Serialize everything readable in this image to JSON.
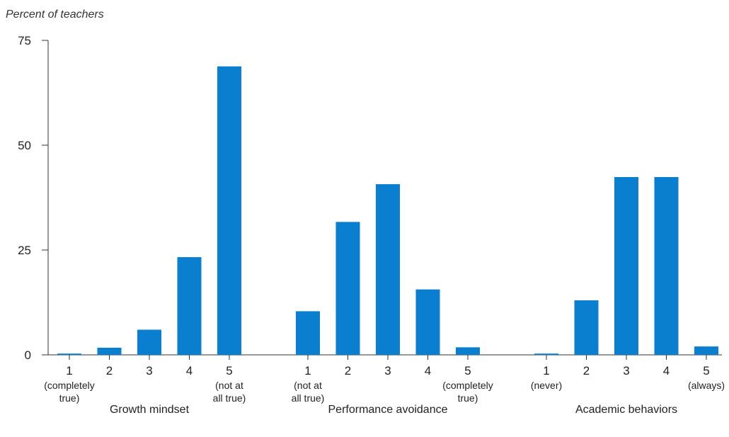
{
  "chart_data": {
    "type": "bar",
    "y_title": "Percent of teachers",
    "ylim": [
      0,
      75
    ],
    "yticks": [
      0,
      25,
      50,
      75
    ],
    "bar_color": "#0a7fd0",
    "groups": [
      {
        "name": "Growth mindset",
        "bars": [
          {
            "tick": "1",
            "sublabel": [
              "(completely",
              "true)"
            ],
            "value": 0.3
          },
          {
            "tick": "2",
            "sublabel": [],
            "value": 1.7
          },
          {
            "tick": "3",
            "sublabel": [],
            "value": 6.0
          },
          {
            "tick": "4",
            "sublabel": [],
            "value": 23.3
          },
          {
            "tick": "5",
            "sublabel": [
              "(not at",
              "all true)"
            ],
            "value": 68.8
          }
        ]
      },
      {
        "name": "Performance avoidance",
        "bars": [
          {
            "tick": "1",
            "sublabel": [
              "(not at",
              "all true)"
            ],
            "value": 10.4
          },
          {
            "tick": "2",
            "sublabel": [],
            "value": 31.7
          },
          {
            "tick": "3",
            "sublabel": [],
            "value": 40.7
          },
          {
            "tick": "4",
            "sublabel": [],
            "value": 15.6
          },
          {
            "tick": "5",
            "sublabel": [
              "(completely",
              "true)"
            ],
            "value": 1.8
          }
        ]
      },
      {
        "name": "Academic behaviors",
        "bars": [
          {
            "tick": "1",
            "sublabel": [
              "(never)"
            ],
            "value": 0.3
          },
          {
            "tick": "2",
            "sublabel": [],
            "value": 13.0
          },
          {
            "tick": "3",
            "sublabel": [],
            "value": 42.4
          },
          {
            "tick": "4",
            "sublabel": [],
            "value": 42.4
          },
          {
            "tick": "5",
            "sublabel": [
              "(always)"
            ],
            "value": 2.0
          }
        ]
      }
    ]
  }
}
